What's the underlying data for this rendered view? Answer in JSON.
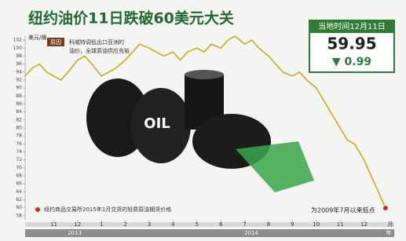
{
  "chart_data": {
    "type": "line",
    "title": "纽约油价11日跌破60美元大关",
    "info_box": {
      "date": "当地时间12月11日",
      "price": "59.95",
      "change": "▼ 0.99"
    },
    "reason_tag": "原因",
    "reason_text": [
      "科威特调低出口亚洲的",
      "油价，全球原油供应充裕"
    ],
    "end_note": "为2009年7月以来低点",
    "illustration_text": "OIL",
    "y_label": "美元/桶",
    "x_unit": "月",
    "year_labels": [
      "2013",
      "2014"
    ],
    "year_unit": "年",
    "x": [
      -1.2,
      -0.9,
      -0.6,
      -0.3,
      0,
      0.3,
      0.6,
      1,
      1.3,
      1.6,
      2,
      2.3,
      2.6,
      3,
      3.3,
      3.6,
      4,
      4.3,
      4.6,
      5,
      5.3,
      5.6,
      6,
      6.3,
      6.6,
      7,
      7.3,
      7.6,
      8,
      8.3,
      8.6,
      9,
      9.3,
      9.6,
      10,
      10.3,
      10.6,
      11,
      11.3,
      11.6,
      12,
      12.3,
      12.6,
      13,
      13.3,
      13.6,
      13.9
    ],
    "series": [
      {
        "name": "纽约商品交易所2015年1月交货的轻质原油期货价格",
        "color": "#c9ad12",
        "marker_color": "#e02020",
        "values": [
          93,
          95,
          96,
          94,
          93,
          92,
          94,
          97,
          98,
          96,
          93,
          94,
          95,
          97,
          99,
          101,
          100,
          99,
          98,
          99,
          97,
          99,
          100,
          99,
          101,
          100,
          102,
          103,
          101,
          102,
          100,
          98,
          96,
          94,
          93,
          94,
          92,
          90,
          87,
          84,
          80,
          77,
          76,
          72,
          68,
          64,
          59.95
        ]
      }
    ],
    "xlim": [
      -1.2,
      14.2
    ],
    "xticks": [
      {
        "value": 0,
        "label": "11"
      },
      {
        "value": 1,
        "label": "12"
      },
      {
        "value": 2,
        "label": "1"
      },
      {
        "value": 3,
        "label": "2"
      },
      {
        "value": 4,
        "label": "3"
      },
      {
        "value": 5,
        "label": "4"
      },
      {
        "value": 6,
        "label": "5"
      },
      {
        "value": 7,
        "label": "6"
      },
      {
        "value": 8,
        "label": "7"
      },
      {
        "value": 9,
        "label": "8"
      },
      {
        "value": 10,
        "label": "9"
      },
      {
        "value": 11,
        "label": "10"
      },
      {
        "value": 12,
        "label": "11"
      },
      {
        "value": 13,
        "label": "12"
      }
    ],
    "ylim": [
      57,
      103
    ],
    "yticks": [
      58,
      60,
      62,
      64,
      66,
      68,
      70,
      72,
      74,
      76,
      78,
      80,
      82,
      84,
      86,
      88,
      90,
      92,
      94,
      96,
      98,
      100,
      102
    ]
  }
}
